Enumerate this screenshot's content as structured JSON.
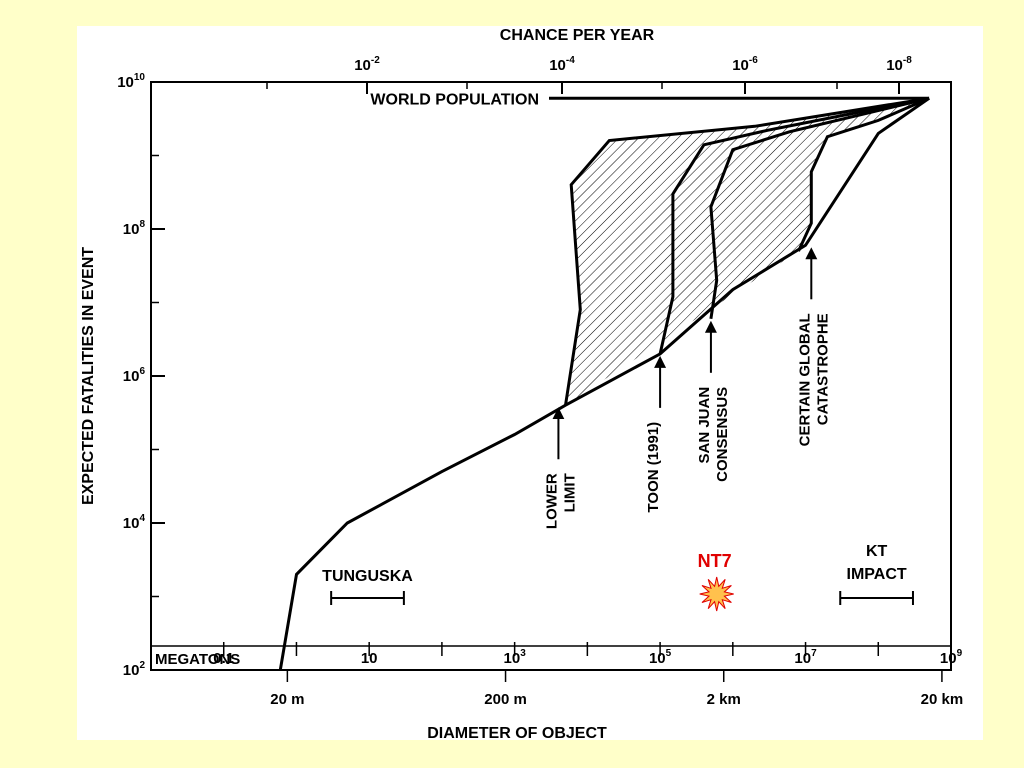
{
  "background_color": "#ffffc9",
  "panel_color": "#ffffff",
  "chart_data": {
    "type": "area",
    "title": "",
    "top_axis": {
      "label": "CHANCE PER YEAR",
      "scale": "log",
      "ticks": [
        {
          "base": "10",
          "exp": "-2",
          "value": 0.01
        },
        {
          "base": "10",
          "exp": "-4",
          "value": 0.0001
        },
        {
          "base": "10",
          "exp": "-6",
          "value": 1e-06
        },
        {
          "base": "10",
          "exp": "-8",
          "value": 1e-08
        }
      ]
    },
    "y_axis": {
      "label": "EXPECTED FATALITIES IN EVENT",
      "scale": "log",
      "range": [
        100,
        10000000000
      ],
      "ticks": [
        {
          "base": "10",
          "exp": "10",
          "value": 10000000000
        },
        {
          "base": "10",
          "exp": "8",
          "value": 100000000
        },
        {
          "base": "10",
          "exp": "6",
          "value": 1000000
        },
        {
          "base": "10",
          "exp": "4",
          "value": 10000
        },
        {
          "base": "10",
          "exp": "2",
          "value": 100
        }
      ]
    },
    "x_axis_megatons": {
      "label": "MEGATONS",
      "scale": "log",
      "range": [
        0.01,
        1000000000
      ],
      "ticks": [
        {
          "base": "0.1",
          "exp": "",
          "value": 0.1
        },
        {
          "base": "10",
          "exp": "",
          "value": 10
        },
        {
          "base": "10",
          "exp": "3",
          "value": 1000
        },
        {
          "base": "10",
          "exp": "5",
          "value": 100000
        },
        {
          "base": "10",
          "exp": "7",
          "value": 10000000
        },
        {
          "base": "10",
          "exp": "9",
          "value": 1000000000
        }
      ]
    },
    "x_axis_diameter": {
      "label": "DIAMETER OF OBJECT",
      "ticks": [
        {
          "label": "20 m",
          "megatons": 0.75
        },
        {
          "label": "200 m",
          "megatons": 750
        },
        {
          "label": "2 km",
          "megatons": 750000
        },
        {
          "label": "20 km",
          "megatons": 750000000
        }
      ]
    },
    "world_population": {
      "label": "WORLD POPULATION",
      "value": 6000000000
    },
    "series": [
      {
        "name": "LOWER LIMIT",
        "arrow_at": {
          "megatons": 4000,
          "fatalities": 400000
        },
        "points": [
          [
            5000,
            400000
          ],
          [
            8000,
            8000000
          ],
          [
            6000,
            400000000
          ],
          [
            20000,
            1600000000
          ],
          [
            2000000,
            2500000000
          ],
          [
            500000000,
            6000000000
          ]
        ]
      },
      {
        "name": "TOON (1991)",
        "arrow_at": {
          "megatons": 100000,
          "fatalities": 2000000
        },
        "points": [
          [
            100000,
            2000000
          ],
          [
            150000,
            12000000
          ],
          [
            150000,
            300000000
          ],
          [
            400000,
            1400000000
          ],
          [
            3000000,
            2200000000
          ],
          [
            500000000,
            6000000000
          ]
        ]
      },
      {
        "name": "SAN JUAN CONSENSUS",
        "arrow_at": {
          "megatons": 500000,
          "fatalities": 6000000
        },
        "points": [
          [
            500000,
            6000000
          ],
          [
            600000,
            20000000
          ],
          [
            500000,
            200000000
          ],
          [
            1000000,
            1200000000
          ],
          [
            6000000,
            2100000000
          ],
          [
            500000000,
            6000000000
          ]
        ]
      },
      {
        "name": "CERTAIN GLOBAL CATASTROPHE",
        "arrow_at": {
          "megatons": 12000000,
          "fatalities": 60000000
        },
        "points": [
          [
            8000000,
            50000000
          ],
          [
            12000000,
            120000000
          ],
          [
            12000000,
            600000000
          ],
          [
            20000000,
            1800000000
          ],
          [
            100000000,
            3000000000
          ],
          [
            500000000,
            6000000000
          ]
        ]
      }
    ],
    "baseline": [
      [
        0.6,
        100
      ],
      [
        1,
        2000
      ],
      [
        5,
        10000
      ],
      [
        100,
        50000
      ],
      [
        1000,
        160000
      ],
      [
        5000,
        400000
      ],
      [
        100000,
        2000000
      ],
      [
        1000000,
        15000000
      ],
      [
        10000000,
        60000000
      ],
      [
        100000000,
        2000000000
      ],
      [
        500000000,
        6000000000
      ]
    ],
    "annotations": [
      {
        "label": "TUNGUSKA",
        "range_megatons": [
          3,
          30
        ]
      },
      {
        "label": "NT7",
        "color": "#e00000",
        "megatons": 600000
      },
      {
        "label_line1": "KT",
        "label_line2": "IMPACT",
        "range_megatons": [
          30000000,
          300000000
        ]
      }
    ],
    "arrow_labels": [
      {
        "line1": "LOWER",
        "line2": "LIMIT"
      },
      {
        "line1": "TOON (1991)",
        "line2": ""
      },
      {
        "line1": "SAN JUAN",
        "line2": "CONSENSUS"
      },
      {
        "line1": "CERTAIN GLOBAL",
        "line2": "CATASTROPHE"
      }
    ],
    "grid": false,
    "legend": "none"
  }
}
